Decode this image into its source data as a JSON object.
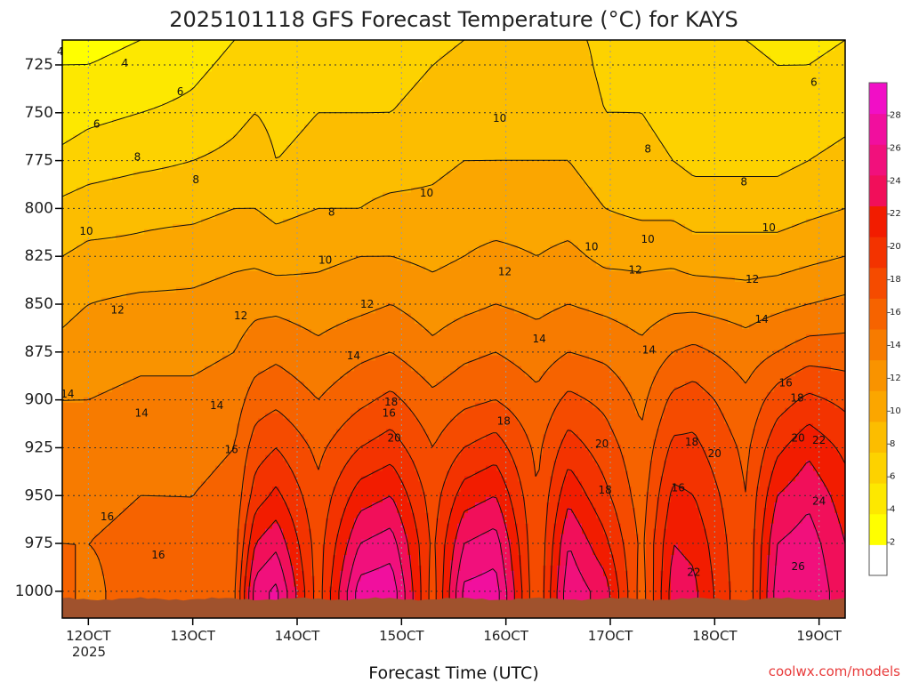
{
  "chart_data": {
    "type": "heatmap",
    "title": "2025101118 GFS Forecast Temperature (°C) for KAYS",
    "xlabel": "Forecast Time (UTC)",
    "ylabel": "",
    "credit": "coolwx.com/models",
    "x_ticks": [
      "12OCT",
      "13OCT",
      "14OCT",
      "15OCT",
      "16OCT",
      "17OCT",
      "18OCT",
      "19OCT"
    ],
    "x_year": "2025",
    "x_range_days": [
      11.75,
      19.25
    ],
    "y_ticks": [
      725,
      750,
      775,
      800,
      825,
      850,
      875,
      900,
      925,
      950,
      975,
      1000
    ],
    "y_range_hpa": [
      712,
      1014
    ],
    "surface_pressure_hpa": 1004,
    "colorbar_ticks": [
      "2",
      "4",
      "6",
      "8",
      "10",
      "12",
      "14",
      "16",
      "18",
      "20",
      "22",
      "24",
      "26",
      "28"
    ],
    "colorbar_min": 0,
    "colorbar_max": 30,
    "colorbar_colors": [
      "#ffffff",
      "#ffff00",
      "#fde800",
      "#fdd200",
      "#fcbd00",
      "#fba600",
      "#f99300",
      "#f77b00",
      "#f66300",
      "#f54b00",
      "#f33300",
      "#f21c00",
      "#f10f5a",
      "#f1107c",
      "#f10f9e",
      "#f10fc6"
    ],
    "contour_interval": 2,
    "profile_levels_hpa": [
      712,
      725,
      750,
      775,
      800,
      825,
      850,
      875,
      900,
      925,
      950,
      975,
      1000,
      1004
    ],
    "keyframes": [
      {
        "t": 11.75,
        "temps": [
          3.5,
          4,
          5,
          6.5,
          8.5,
          10,
          11.5,
          12.5,
          14,
          15,
          15.5,
          16,
          16.5,
          16.5
        ]
      },
      {
        "t": 12.0,
        "temps": [
          3.5,
          4,
          5.5,
          7,
          9,
          10.5,
          12,
          13,
          14,
          15,
          15.5,
          16,
          15.5,
          15.5
        ]
      },
      {
        "t": 12.5,
        "temps": [
          4,
          4.5,
          6,
          7.5,
          9.5,
          10.5,
          12.5,
          13.5,
          14.5,
          15.5,
          16,
          16.5,
          17,
          17
        ]
      },
      {
        "t": 13.0,
        "temps": [
          5,
          5.5,
          6.5,
          8,
          9.5,
          11,
          12.5,
          13.5,
          14.5,
          15.5,
          16,
          16,
          16,
          16
        ]
      },
      {
        "t": 13.4,
        "temps": [
          6,
          6.5,
          7.5,
          8.5,
          10,
          11.5,
          13,
          14,
          15,
          16,
          16.5,
          17,
          17.5,
          17.5
        ]
      },
      {
        "t": 13.6,
        "temps": [
          6.5,
          7,
          8,
          9,
          10,
          11.5,
          13.5,
          15,
          17,
          19,
          21,
          24,
          27,
          27
        ]
      },
      {
        "t": 13.8,
        "temps": [
          7,
          7,
          7.5,
          8,
          9.5,
          11,
          13.5,
          15.5,
          17.5,
          20,
          22.5,
          25.5,
          28.5,
          28.5
        ]
      },
      {
        "t": 14.2,
        "temps": [
          7,
          7.5,
          8,
          8.5,
          10,
          11.5,
          13,
          14.5,
          16,
          17.5,
          18.5,
          19,
          19,
          19
        ]
      },
      {
        "t": 14.6,
        "temps": [
          6.5,
          7,
          8,
          9,
          10,
          12,
          13.5,
          15.5,
          17.5,
          20,
          23,
          26,
          29,
          29
        ]
      },
      {
        "t": 14.9,
        "temps": [
          7,
          7.5,
          8,
          9,
          10.5,
          12,
          14,
          16,
          18.5,
          21,
          24,
          27,
          29.5,
          29.5
        ]
      },
      {
        "t": 15.3,
        "temps": [
          7.5,
          8,
          8.5,
          9.5,
          10.5,
          11.5,
          13,
          14.5,
          16.5,
          18,
          19,
          19.5,
          19,
          19
        ]
      },
      {
        "t": 15.6,
        "temps": [
          8,
          8.5,
          9,
          10,
          11,
          12,
          13.5,
          15.5,
          17.5,
          20,
          23,
          26,
          28.5,
          28.5
        ]
      },
      {
        "t": 15.9,
        "temps": [
          8.5,
          9,
          9.5,
          10,
          11,
          12.5,
          14,
          16,
          18,
          21,
          24,
          27,
          29,
          29
        ]
      },
      {
        "t": 16.3,
        "temps": [
          8.5,
          9,
          9.5,
          10,
          11,
          12,
          13.5,
          15,
          16.5,
          17.5,
          18,
          18,
          18,
          18
        ]
      },
      {
        "t": 16.6,
        "temps": [
          8.5,
          9,
          9.5,
          10,
          11,
          12.5,
          14,
          16,
          18.5,
          21,
          23.5,
          26,
          27.5,
          27.5
        ]
      },
      {
        "t": 16.95,
        "temps": [
          7.5,
          7.5,
          8,
          9,
          10,
          11.5,
          13.5,
          15.5,
          17.5,
          19,
          20.5,
          22.5,
          25,
          25
        ]
      },
      {
        "t": 17.3,
        "temps": [
          7,
          7.5,
          8,
          8.5,
          9.5,
          11.5,
          13,
          14.5,
          15.5,
          16.5,
          17,
          17.5,
          17,
          17
        ]
      },
      {
        "t": 17.6,
        "temps": [
          6.5,
          7,
          7.5,
          8,
          9.5,
          11.5,
          13.5,
          16,
          18.5,
          20.5,
          22.5,
          24,
          25,
          25
        ]
      },
      {
        "t": 17.8,
        "temps": [
          6,
          6.5,
          7,
          7.5,
          9,
          11,
          13.5,
          16.5,
          19,
          20.5,
          22,
          23.5,
          24.5,
          24.5
        ]
      },
      {
        "t": 18.3,
        "temps": [
          6,
          6.5,
          7,
          7.5,
          9,
          11,
          13,
          15,
          16.5,
          17.5,
          18,
          18,
          18,
          18
        ]
      },
      {
        "t": 18.6,
        "temps": [
          5.5,
          6,
          6.5,
          7.5,
          9,
          11,
          13.5,
          16,
          19,
          21.5,
          24,
          26,
          27,
          27
        ]
      },
      {
        "t": 18.9,
        "temps": [
          5.5,
          6,
          7,
          8,
          9.5,
          11.5,
          14,
          17,
          20.5,
          23.5,
          25.5,
          27,
          28,
          28
        ]
      },
      {
        "t": 19.25,
        "temps": [
          6,
          6.5,
          7.5,
          8.5,
          10,
          12,
          14.5,
          17,
          19.5,
          21.5,
          23,
          24,
          24.5,
          24.5
        ]
      }
    ],
    "contour_labels": [
      {
        "text": "4",
        "t": 11.73,
        "p": 718
      },
      {
        "text": "4",
        "t": 12.35,
        "p": 724
      },
      {
        "text": "6",
        "t": 12.88,
        "p": 739
      },
      {
        "text": "6",
        "t": 12.08,
        "p": 756
      },
      {
        "text": "6",
        "t": 18.95,
        "p": 734
      },
      {
        "text": "8",
        "t": 12.47,
        "p": 773
      },
      {
        "text": "8",
        "t": 13.03,
        "p": 785
      },
      {
        "text": "8",
        "t": 14.33,
        "p": 802
      },
      {
        "text": "8",
        "t": 17.36,
        "p": 769
      },
      {
        "text": "8",
        "t": 18.28,
        "p": 786
      },
      {
        "text": "10",
        "t": 11.98,
        "p": 812
      },
      {
        "text": "10",
        "t": 14.27,
        "p": 827
      },
      {
        "text": "10",
        "t": 15.24,
        "p": 792
      },
      {
        "text": "10",
        "t": 15.94,
        "p": 753
      },
      {
        "text": "10",
        "t": 16.82,
        "p": 820
      },
      {
        "text": "10",
        "t": 17.36,
        "p": 816
      },
      {
        "text": "10",
        "t": 18.52,
        "p": 810
      },
      {
        "text": "12",
        "t": 12.28,
        "p": 853
      },
      {
        "text": "12",
        "t": 13.46,
        "p": 856
      },
      {
        "text": "12",
        "t": 14.67,
        "p": 850
      },
      {
        "text": "12",
        "t": 15.99,
        "p": 833
      },
      {
        "text": "12",
        "t": 17.24,
        "p": 832
      },
      {
        "text": "12",
        "t": 18.36,
        "p": 837
      },
      {
        "text": "14",
        "t": 11.8,
        "p": 897
      },
      {
        "text": "14",
        "t": 12.51,
        "p": 907
      },
      {
        "text": "14",
        "t": 13.23,
        "p": 903
      },
      {
        "text": "14",
        "t": 14.54,
        "p": 877
      },
      {
        "text": "14",
        "t": 16.32,
        "p": 868
      },
      {
        "text": "14",
        "t": 17.37,
        "p": 874
      },
      {
        "text": "14",
        "t": 18.45,
        "p": 858
      },
      {
        "text": "16",
        "t": 12.18,
        "p": 961
      },
      {
        "text": "16",
        "t": 12.67,
        "p": 981
      },
      {
        "text": "16",
        "t": 13.37,
        "p": 926
      },
      {
        "text": "16",
        "t": 14.88,
        "p": 907
      },
      {
        "text": "16",
        "t": 17.65,
        "p": 946
      },
      {
        "text": "16",
        "t": 18.68,
        "p": 891
      },
      {
        "text": "18",
        "t": 14.9,
        "p": 901
      },
      {
        "text": "18",
        "t": 15.98,
        "p": 911
      },
      {
        "text": "18",
        "t": 16.95,
        "p": 947
      },
      {
        "text": "18",
        "t": 17.78,
        "p": 922
      },
      {
        "text": "18",
        "t": 18.79,
        "p": 899
      },
      {
        "text": "20",
        "t": 14.93,
        "p": 920
      },
      {
        "text": "20",
        "t": 16.92,
        "p": 923
      },
      {
        "text": "20",
        "t": 18.0,
        "p": 928
      },
      {
        "text": "20",
        "t": 18.8,
        "p": 920
      },
      {
        "text": "22",
        "t": 17.8,
        "p": 990
      },
      {
        "text": "22",
        "t": 19.0,
        "p": 921
      },
      {
        "text": "24",
        "t": 19.0,
        "p": 953
      },
      {
        "text": "26",
        "t": 18.8,
        "p": 987
      }
    ]
  }
}
